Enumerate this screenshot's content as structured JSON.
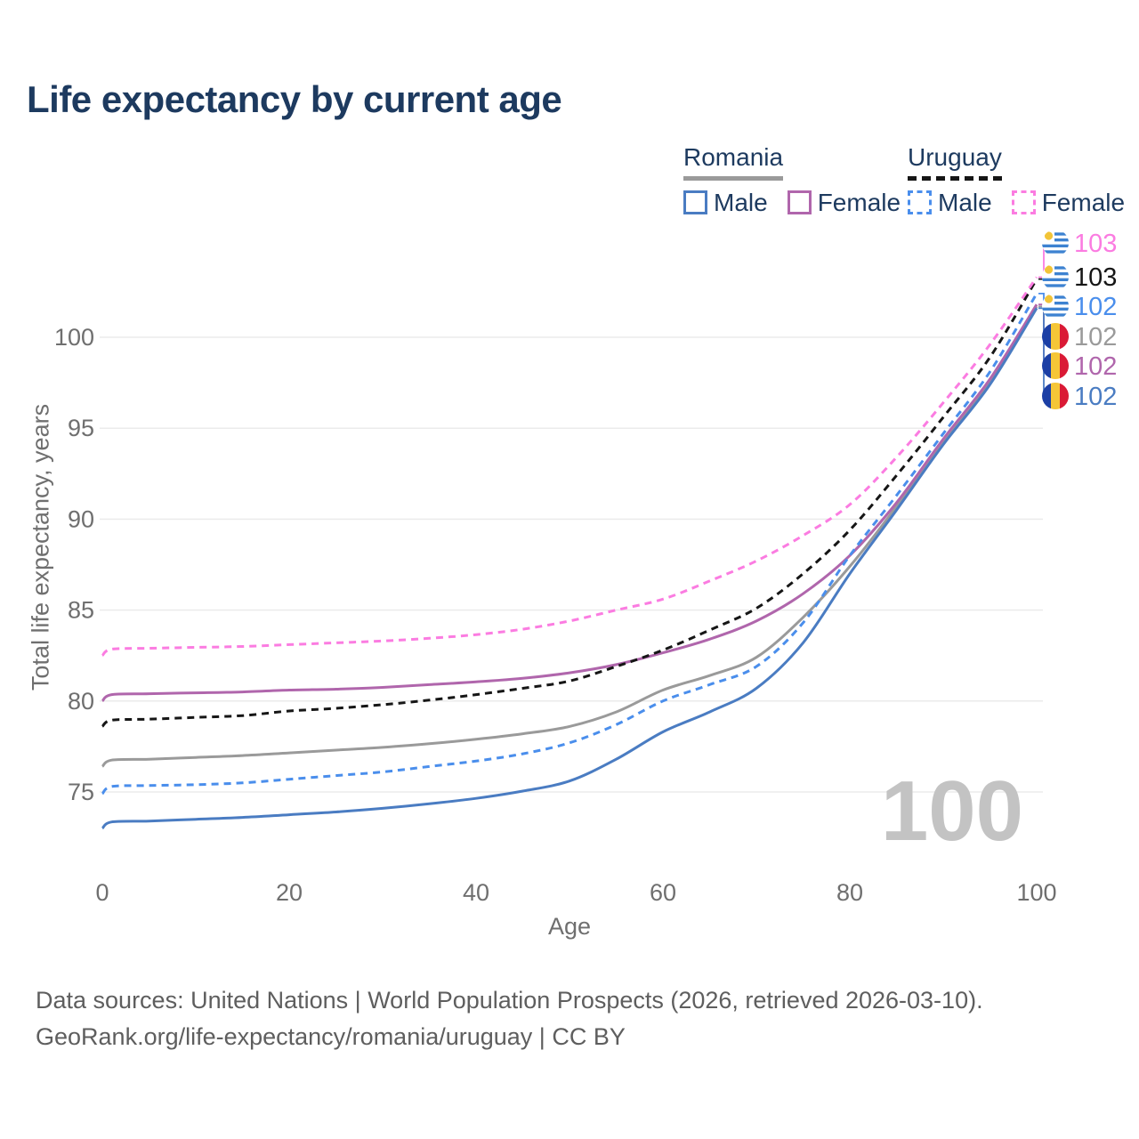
{
  "title": "Life expectancy by current age",
  "watermark": "100",
  "legend": {
    "groups": [
      {
        "country": "Romania",
        "line_style": "solid",
        "underline_color": "#9a9a9a",
        "items": [
          {
            "label": "Male",
            "color": "#4a7cc2"
          },
          {
            "label": "Female",
            "color": "#b066ac"
          }
        ]
      },
      {
        "country": "Uruguay",
        "line_style": "dashed",
        "underline_color": "#161616",
        "items": [
          {
            "label": "Male",
            "color": "#4a8eec"
          },
          {
            "label": "Female",
            "color": "#fb7ce1"
          }
        ]
      }
    ]
  },
  "axes": {
    "x_title": "Age",
    "y_title": "Total life expectancy, years"
  },
  "source": {
    "line1": "Data sources: United Nations | World Population Prospects (2026, retrieved 2026-03-10).",
    "line2": "GeoRank.org/life-expectancy/romania/uruguay | CC BY"
  },
  "chart_data": {
    "type": "line",
    "title": "Life expectancy by current age",
    "xlabel": "Age",
    "ylabel": "Total life expectancy, years",
    "xlim": [
      0,
      100
    ],
    "ylim": [
      72.5,
      104
    ],
    "xticks": [
      0,
      20,
      40,
      60,
      80,
      100
    ],
    "yticks": [
      75,
      80,
      85,
      90,
      95,
      100
    ],
    "grid": "horizontal",
    "legend_position": "top-right",
    "ages": [
      0,
      1,
      5,
      10,
      15,
      20,
      25,
      30,
      35,
      40,
      45,
      50,
      55,
      60,
      65,
      70,
      75,
      80,
      85,
      90,
      95,
      100
    ],
    "series": [
      {
        "id": "romania-all",
        "country": "romania",
        "sex": "all",
        "name": "Romania",
        "color": "#9a9a9a",
        "dashed": false,
        "end_label": "102",
        "end_row": 3,
        "values": [
          76.4,
          76.75,
          76.8,
          76.9,
          77.0,
          77.15,
          77.3,
          77.45,
          77.65,
          77.9,
          78.2,
          78.6,
          79.4,
          80.6,
          81.4,
          82.4,
          84.6,
          87.4,
          90.7,
          94.3,
          97.55,
          101.7
        ]
      },
      {
        "id": "romania-female",
        "country": "romania",
        "sex": "female",
        "name": "Romania Female",
        "color": "#b066ac",
        "dashed": false,
        "end_label": "102",
        "end_row": 4,
        "values": [
          80.0,
          80.35,
          80.4,
          80.45,
          80.5,
          80.6,
          80.65,
          80.75,
          80.9,
          81.05,
          81.25,
          81.55,
          82.0,
          82.65,
          83.4,
          84.4,
          85.9,
          88.0,
          90.9,
          94.4,
          97.7,
          101.8
        ]
      },
      {
        "id": "romania-male",
        "country": "romania",
        "sex": "male",
        "name": "Romania Male",
        "color": "#4a7cc2",
        "dashed": false,
        "end_label": "102",
        "end_row": 5,
        "values": [
          73.0,
          73.35,
          73.4,
          73.5,
          73.6,
          73.75,
          73.9,
          74.1,
          74.35,
          74.65,
          75.05,
          75.6,
          76.8,
          78.3,
          79.4,
          80.7,
          83.2,
          87.0,
          90.5,
          94.1,
          97.4,
          101.6
        ]
      },
      {
        "id": "uruguay-all",
        "country": "uruguay",
        "sex": "all",
        "name": "Uruguay",
        "color": "#161616",
        "dashed": true,
        "end_label": "103",
        "end_row": 1,
        "values": [
          78.6,
          78.95,
          79.0,
          79.1,
          79.2,
          79.45,
          79.6,
          79.8,
          80.05,
          80.35,
          80.7,
          81.1,
          81.9,
          82.8,
          83.9,
          85.1,
          87.0,
          89.4,
          92.4,
          95.6,
          98.9,
          103.2
        ]
      },
      {
        "id": "uruguay-male",
        "country": "uruguay",
        "sex": "male",
        "name": "Uruguay Male",
        "color": "#4a8eec",
        "dashed": true,
        "end_label": "102",
        "end_row": 2,
        "values": [
          74.9,
          75.3,
          75.35,
          75.4,
          75.5,
          75.7,
          75.9,
          76.1,
          76.4,
          76.7,
          77.1,
          77.7,
          78.7,
          80.0,
          80.9,
          81.9,
          84.3,
          88.0,
          91.3,
          94.7,
          98.1,
          102.4
        ]
      },
      {
        "id": "uruguay-female",
        "country": "uruguay",
        "sex": "female",
        "name": "Uruguay Female",
        "color": "#fb7ce1",
        "dashed": true,
        "end_label": "103",
        "end_row": 0,
        "values": [
          82.5,
          82.85,
          82.9,
          82.95,
          83.0,
          83.1,
          83.2,
          83.3,
          83.45,
          83.65,
          83.95,
          84.4,
          85.0,
          85.6,
          86.6,
          87.7,
          89.1,
          90.8,
          93.4,
          96.4,
          99.6,
          103.3
        ]
      }
    ]
  }
}
